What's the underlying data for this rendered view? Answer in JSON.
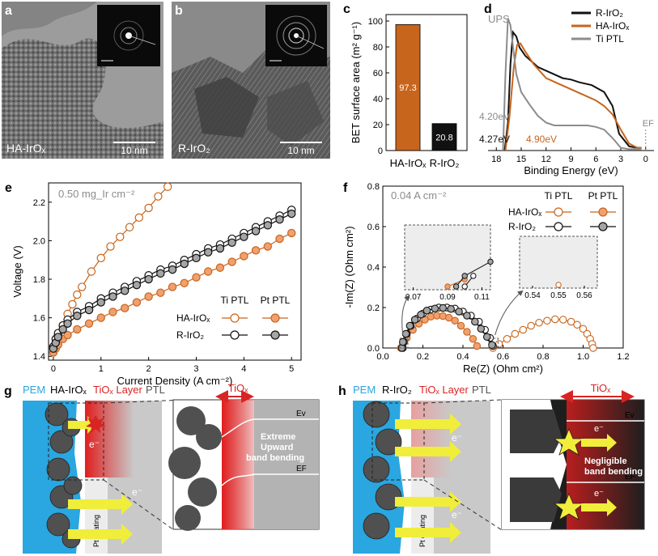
{
  "colors": {
    "orange": "#c8651c",
    "black": "#111111",
    "grey": "#8c8c8c",
    "pem_blue": "#2aa6e0",
    "red": "#d92424",
    "yellow": "#f0ee3a"
  },
  "panel_a": {
    "letter": "a",
    "label": "HA-IrOₓ",
    "scalebar": "10 nm"
  },
  "panel_b": {
    "letter": "b",
    "label": "R-IrO₂",
    "scalebar": "10 nm"
  },
  "panel_g": {
    "letter": "g",
    "pem": "PEM",
    "catalyst": "HA-IrOₓ",
    "tiox_layer": "TiOₓ Layer",
    "ptl": "PTL",
    "tiox": "TiOₓ",
    "electron": "e⁻",
    "ev": "Ev",
    "ef": "EF",
    "pt_coating": "Pt coating",
    "bending": [
      "Extreme",
      "Upward",
      "band bending"
    ]
  },
  "panel_h": {
    "letter": "h",
    "pem": "PEM",
    "catalyst": "R-IrO₂",
    "tiox_layer": "TiOₓ Layer",
    "ptl": "PTL",
    "tiox": "TiOₓ",
    "electron": "e⁻",
    "ev": "Ev",
    "ef": "EF",
    "pt_coating": "Pt coating",
    "bending": [
      "Negligible",
      "band bending"
    ]
  },
  "chart_data": [
    {
      "id": "c",
      "letter": "c",
      "type": "bar",
      "categories": [
        "HA-IrOₓ",
        "R-IrO₂"
      ],
      "values": [
        97.3,
        20.8
      ],
      "value_labels": [
        "97.3",
        "20.8"
      ],
      "ylabel": "BET surface area (m² g⁻¹)",
      "ylim": [
        0,
        105
      ],
      "yticks": [
        "0",
        "20",
        "40",
        "60",
        "80",
        "100"
      ],
      "bar_colors": [
        "#c8651c",
        "#111111"
      ]
    },
    {
      "id": "d",
      "letter": "d",
      "type": "line",
      "xlabel": "Binding Energy (eV)",
      "xlim": [
        19,
        -1
      ],
      "xticks": [
        "18",
        "15",
        "12",
        "9",
        "6",
        "3",
        "0"
      ],
      "annotation": "UPS",
      "fermi_label": "EF",
      "onset_labels": [
        {
          "text": "4.20eV",
          "color": "#8c8c8c"
        },
        {
          "text": "4.27eV",
          "color": "#111111"
        },
        {
          "text": "4.90eV",
          "color": "#c8651c"
        }
      ],
      "series": [
        {
          "name": "R-IrO₂",
          "color": "#111111",
          "x": [
            17.0,
            16.6,
            16.3,
            16.0,
            15.6,
            15.2,
            14.5,
            13.0,
            11.5,
            10.0,
            9.0,
            8.0,
            6.5,
            5.0,
            4.0,
            3.2,
            2.0,
            1.0,
            0.5
          ],
          "y": [
            0,
            0.2,
            0.62,
            0.85,
            0.82,
            0.74,
            0.68,
            0.6,
            0.56,
            0.52,
            0.51,
            0.49,
            0.47,
            0.42,
            0.32,
            0.12,
            0.03,
            0.02,
            0.02
          ]
        },
        {
          "name": "HA-IrOₓ",
          "color": "#c8651c",
          "x": [
            16.9,
            16.4,
            15.9,
            15.5,
            15.1,
            14.6,
            13.5,
            12.0,
            10.5,
            9.0,
            7.5,
            6.0,
            5.0,
            4.0,
            3.0,
            2.0,
            1.0,
            0.5
          ],
          "y": [
            0,
            0.25,
            0.6,
            0.76,
            0.77,
            0.72,
            0.62,
            0.52,
            0.48,
            0.44,
            0.4,
            0.36,
            0.32,
            0.26,
            0.15,
            0.05,
            0.02,
            0.02
          ]
        },
        {
          "name": "Ti PTL",
          "color": "#8c8c8c",
          "x": [
            17.2,
            16.9,
            16.6,
            16.3,
            16.0,
            15.6,
            15.0,
            14.0,
            13.0,
            12.0,
            11.0,
            10.0,
            8.5,
            7.0,
            6.0,
            5.0,
            4.0,
            3.0,
            2.0,
            0.5
          ],
          "y": [
            0,
            0.55,
            0.95,
            0.9,
            0.75,
            0.55,
            0.42,
            0.33,
            0.25,
            0.2,
            0.18,
            0.18,
            0.18,
            0.18,
            0.17,
            0.15,
            0.09,
            0.02,
            0.01,
            0.01
          ]
        }
      ]
    },
    {
      "id": "e",
      "letter": "e",
      "type": "line",
      "xlabel": "Current Density (A cm⁻²)",
      "ylabel": "Voltage (V)",
      "xlim": [
        -0.1,
        5.2
      ],
      "ylim": [
        1.38,
        2.3
      ],
      "xticks": [
        "0",
        "1",
        "2",
        "3",
        "4",
        "5"
      ],
      "yticks": [
        "1.4",
        "1.6",
        "1.8",
        "2.0",
        "2.2"
      ],
      "annotation": "0.50 mg_Ir cm⁻²",
      "legend_headers": [
        "Ti PTL",
        "Pt PTL"
      ],
      "series": [
        {
          "name": "HA-IrOₓ Ti PTL",
          "color": "#c8651c",
          "fill": "none",
          "x": [
            0,
            0.05,
            0.1,
            0.2,
            0.3,
            0.4,
            0.5,
            0.6,
            0.8,
            1.0,
            1.2,
            1.4,
            1.6,
            1.8,
            2.0,
            2.2,
            2.4
          ],
          "y": [
            1.42,
            1.47,
            1.51,
            1.56,
            1.62,
            1.67,
            1.72,
            1.76,
            1.84,
            1.91,
            1.97,
            2.02,
            2.07,
            2.12,
            2.17,
            2.23,
            2.28
          ]
        },
        {
          "name": "HA-IrOₓ Pt PTL",
          "color": "#c8651c",
          "fill": "#f0a070",
          "x": [
            0,
            0.05,
            0.1,
            0.2,
            0.3,
            0.5,
            0.75,
            1.0,
            1.25,
            1.5,
            1.75,
            2.0,
            2.25,
            2.5,
            2.75,
            3.0,
            3.25,
            3.5,
            3.75,
            4.0,
            4.25,
            4.5,
            4.75,
            5.0
          ],
          "y": [
            1.42,
            1.44,
            1.46,
            1.49,
            1.51,
            1.54,
            1.57,
            1.6,
            1.63,
            1.65,
            1.68,
            1.71,
            1.73,
            1.76,
            1.78,
            1.81,
            1.84,
            1.86,
            1.89,
            1.92,
            1.95,
            1.97,
            2.01,
            2.04
          ]
        },
        {
          "name": "R-IrO₂ Ti PTL",
          "color": "#111111",
          "fill": "none",
          "x": [
            0,
            0.05,
            0.1,
            0.2,
            0.3,
            0.5,
            0.75,
            1.0,
            1.25,
            1.5,
            1.75,
            2.0,
            2.25,
            2.5,
            2.75,
            3.0,
            3.25,
            3.5,
            3.75,
            4.0,
            4.25,
            4.5,
            4.75,
            5.0
          ],
          "y": [
            1.45,
            1.49,
            1.52,
            1.56,
            1.59,
            1.63,
            1.66,
            1.7,
            1.73,
            1.76,
            1.79,
            1.82,
            1.85,
            1.87,
            1.9,
            1.93,
            1.96,
            1.98,
            2.01,
            2.04,
            2.07,
            2.1,
            2.13,
            2.16
          ]
        },
        {
          "name": "R-IrO₂ Pt PTL",
          "color": "#111111",
          "fill": "#a5a5a5",
          "x": [
            0,
            0.05,
            0.1,
            0.2,
            0.3,
            0.5,
            0.75,
            1.0,
            1.25,
            1.5,
            1.75,
            2.0,
            2.25,
            2.5,
            2.75,
            3.0,
            3.25,
            3.5,
            3.75,
            4.0,
            4.25,
            4.5,
            4.75,
            5.0
          ],
          "y": [
            1.44,
            1.47,
            1.5,
            1.54,
            1.57,
            1.61,
            1.64,
            1.68,
            1.71,
            1.74,
            1.77,
            1.8,
            1.83,
            1.85,
            1.88,
            1.91,
            1.94,
            1.96,
            1.99,
            2.02,
            2.05,
            2.08,
            2.11,
            2.14
          ]
        }
      ]
    },
    {
      "id": "f",
      "letter": "f",
      "type": "scatter",
      "xlabel": "Re(Z) (Ohm cm²)",
      "ylabel": "-Im(Z) (Ohm cm²)",
      "xlim": [
        0,
        1.2
      ],
      "ylim": [
        0,
        0.8
      ],
      "xticks": [
        "0.0",
        "0.2",
        "0.4",
        "0.6",
        "0.8",
        "1.0",
        "1.2"
      ],
      "yticks": [
        "0.0",
        "0.2",
        "0.4",
        "0.6",
        "0.8"
      ],
      "annotation": "0.04 A cm⁻²",
      "legend_headers": [
        "Ti PTL",
        "Pt PTL"
      ],
      "series": [
        {
          "name": "HA-IrOₓ Ti PTL",
          "color": "#c8651c",
          "fill": "none",
          "x": [
            0.55,
            0.58,
            0.62,
            0.66,
            0.7,
            0.74,
            0.78,
            0.82,
            0.86,
            0.9,
            0.94,
            0.97,
            1.0,
            1.02,
            1.035,
            1.045,
            1.05
          ],
          "y": [
            0.0,
            0.02,
            0.045,
            0.07,
            0.09,
            0.11,
            0.125,
            0.135,
            0.142,
            0.14,
            0.13,
            0.115,
            0.095,
            0.07,
            0.045,
            0.02,
            0.0
          ]
        },
        {
          "name": "HA-IrOₓ Pt PTL",
          "color": "#c8651c",
          "fill": "#f0a070",
          "x": [
            0.09,
            0.1,
            0.12,
            0.15,
            0.18,
            0.21,
            0.24,
            0.27,
            0.3,
            0.33,
            0.36,
            0.39,
            0.42,
            0.45,
            0.47
          ],
          "y": [
            0.0,
            0.02,
            0.05,
            0.09,
            0.12,
            0.14,
            0.155,
            0.16,
            0.158,
            0.15,
            0.135,
            0.11,
            0.08,
            0.045,
            0.01
          ]
        },
        {
          "name": "R-IrO₂ Ti PTL",
          "color": "#111111",
          "fill": "none",
          "x": [
            0.1,
            0.105,
            0.12,
            0.14,
            0.17,
            0.2,
            0.24,
            0.28,
            0.32,
            0.36,
            0.4,
            0.44,
            0.48,
            0.51,
            0.535,
            0.55
          ],
          "y": [
            0.0,
            0.03,
            0.07,
            0.11,
            0.145,
            0.17,
            0.19,
            0.2,
            0.2,
            0.195,
            0.18,
            0.16,
            0.13,
            0.09,
            0.05,
            0.01
          ]
        },
        {
          "name": "R-IrO₂ Pt PTL",
          "color": "#111111",
          "fill": "#a5a5a5",
          "x": [
            0.095,
            0.1,
            0.115,
            0.135,
            0.16,
            0.19,
            0.22,
            0.26,
            0.3,
            0.34,
            0.38,
            0.42,
            0.46,
            0.49,
            0.52,
            0.545
          ],
          "y": [
            0.0,
            0.03,
            0.07,
            0.11,
            0.14,
            0.165,
            0.185,
            0.195,
            0.198,
            0.193,
            0.18,
            0.16,
            0.13,
            0.095,
            0.055,
            0.015
          ]
        }
      ],
      "insets": [
        {
          "xticks": [
            "0.07",
            "0.09",
            "0.11"
          ],
          "xlim": [
            0.065,
            0.115
          ],
          "yrange": [
            0,
            0.16
          ]
        },
        {
          "xticks": [
            "0.54",
            "0.55",
            "0.56"
          ],
          "xlim": [
            0.535,
            0.565
          ],
          "yrange": [
            0,
            0.06
          ]
        }
      ]
    }
  ]
}
